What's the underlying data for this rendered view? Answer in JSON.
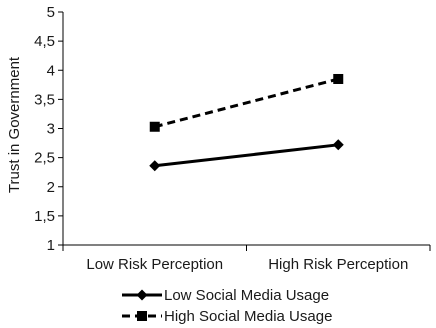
{
  "chart_data": {
    "type": "line",
    "title": "",
    "xlabel": "",
    "ylabel": "Trust in Government",
    "categories": [
      "Low Risk Perception",
      "High Risk Perception"
    ],
    "ylim": [
      1,
      5
    ],
    "yticks": [
      "1",
      "1,5",
      "2",
      "2,5",
      "3",
      "3,5",
      "4",
      "4,5",
      "5"
    ],
    "ytick_values": [
      1,
      1.5,
      2,
      2.5,
      3,
      3.5,
      4,
      4.5,
      5
    ],
    "grid": false,
    "legend_position": "bottom",
    "series": [
      {
        "name": "Low Social Media Usage",
        "values": [
          2.36,
          2.72
        ],
        "marker": "diamond",
        "line": "solid",
        "color": "#000000"
      },
      {
        "name": "High Social Media Usage",
        "values": [
          3.03,
          3.85
        ],
        "marker": "square",
        "line": "dashed",
        "color": "#000000"
      }
    ]
  }
}
